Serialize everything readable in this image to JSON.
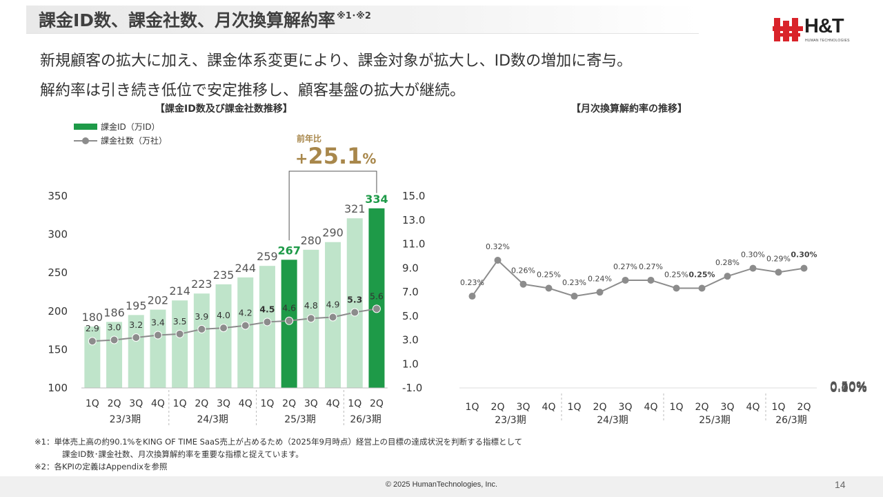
{
  "header": {
    "title": "課金ID数、課金社数、月次換算解約率",
    "title_note": "※1･※2",
    "logo_text": "H&T",
    "logo_subtext": "HUMAN TECHNOLOGIES"
  },
  "lead": {
    "line1": "新規顧客の拡大に加え、課金体系変更により、課金対象が拡大し、ID数の増加に寄与。",
    "line2": "解約率は引き続き低位で安定推移し、顧客基盤の拡大が継続。"
  },
  "left_chart_title": "【課金ID数及び課金社数推移】",
  "right_chart_title": "【月次換算解約率の推移】",
  "legend": {
    "bar": "課金ID（万ID）",
    "line": "課金社数（万社）"
  },
  "yoy": {
    "label": "前年比",
    "sign": "+",
    "value": "25.1",
    "unit": "%"
  },
  "colors": {
    "bar_light": "#bfe4ca",
    "bar_dark": "#1e9a48",
    "line": "#8c8c8c",
    "highlight_text": "#1e9a48",
    "accent": "#a8874b"
  },
  "chart_data": [
    {
      "type": "bar",
      "title": "【課金ID数及び課金社数推移】",
      "categories": [
        "1Q",
        "2Q",
        "3Q",
        "4Q",
        "1Q",
        "2Q",
        "3Q",
        "4Q",
        "1Q",
        "2Q",
        "3Q",
        "4Q",
        "1Q",
        "2Q"
      ],
      "groups": [
        "23/3期",
        "24/3期",
        "25/3期",
        "26/3期"
      ],
      "series": [
        {
          "name": "課金ID（万ID）",
          "type": "bar",
          "axis": "left",
          "values": [
            180,
            186,
            195,
            202,
            214,
            223,
            235,
            244,
            259,
            267,
            280,
            290,
            321,
            334
          ],
          "highlight": [
            false,
            false,
            false,
            false,
            false,
            false,
            false,
            false,
            false,
            true,
            false,
            false,
            false,
            true
          ]
        },
        {
          "name": "課金社数（万社）",
          "type": "line",
          "axis": "right",
          "values": [
            2.9,
            3.0,
            3.2,
            3.4,
            3.5,
            3.9,
            4.0,
            4.2,
            4.5,
            4.6,
            4.8,
            4.9,
            5.3,
            5.6
          ],
          "bold": [
            false,
            false,
            false,
            false,
            false,
            false,
            false,
            false,
            true,
            false,
            false,
            false,
            true,
            false
          ]
        }
      ],
      "y_left": {
        "min": 100,
        "max": 350,
        "ticks": [
          "100",
          "150",
          "200",
          "250",
          "300",
          "350"
        ]
      },
      "y_right": {
        "min": -1.0,
        "max": 15.0,
        "ticks": [
          "-1.0",
          "1.0",
          "3.0",
          "5.0",
          "7.0",
          "9.0",
          "11.0",
          "13.0",
          "15.0"
        ]
      }
    },
    {
      "type": "line",
      "title": "【月次換算解約率の推移】",
      "categories": [
        "1Q",
        "2Q",
        "3Q",
        "4Q",
        "1Q",
        "2Q",
        "3Q",
        "4Q",
        "1Q",
        "2Q",
        "3Q",
        "4Q",
        "1Q",
        "2Q"
      ],
      "groups": [
        "23/3期",
        "24/3期",
        "25/3期",
        "26/3期"
      ],
      "values": [
        0.23,
        0.32,
        0.26,
        0.25,
        0.23,
        0.24,
        0.27,
        0.27,
        0.25,
        0.25,
        0.28,
        0.3,
        0.29,
        0.3
      ],
      "labels": [
        "0.23%",
        "0.32%",
        "0.26%",
        "0.25%",
        "0.23%",
        "0.24%",
        "0.27%",
        "0.27%",
        "0.25%",
        "0.25%",
        "0.28%",
        "0.30%",
        "0.29%",
        "0.30%"
      ],
      "bold": [
        false,
        false,
        false,
        false,
        false,
        false,
        false,
        false,
        false,
        true,
        false,
        false,
        false,
        true
      ],
      "y_right": {
        "min": 0.0,
        "max": 0.5,
        "ticks": [
          "0.00%",
          "0.10%",
          "0.20%",
          "0.30%",
          "0.40%",
          "0.50%"
        ]
      }
    }
  ],
  "footnotes": {
    "fn1": "※1：単体売上高の約90.1%をKING OF TIME SaaS売上が占めるため（2025年9月時点）経営上の目標の達成状況を判断する指標として",
    "fn1b": "課金ID数･課金社数、月次換算解約率を重要な指標と捉えています。",
    "fn2": "※2：各KPIの定義はAppendixを参照"
  },
  "footer": {
    "copyright": "© 2025  HumanTechnologies, Inc.",
    "page": "14"
  }
}
